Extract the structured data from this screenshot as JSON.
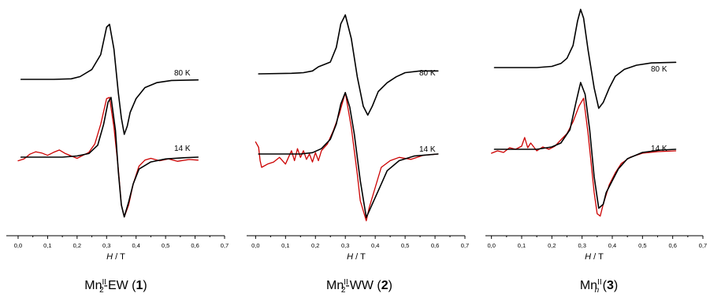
{
  "chart_data": [
    {
      "type": "line",
      "caption": {
        "base": "Mn",
        "sup": "II",
        "sub": "2",
        "suffix": "-EW (",
        "num": "1",
        "close": ")"
      },
      "xlabel": {
        "italic": "H",
        "rest": " / T"
      },
      "xlim": [
        -0.04,
        0.7
      ],
      "xticks": [
        "0,0",
        "0,1",
        "0,2",
        "0,3",
        "0,4",
        "0,5",
        "0,6",
        "0,7"
      ],
      "temperature_labels": [
        "80 K",
        "14 K"
      ],
      "series": [
        {
          "color": "#000000",
          "curve": "80K",
          "x": [
            0.01,
            0.12,
            0.18,
            0.21,
            0.25,
            0.28,
            0.3,
            0.31,
            0.325,
            0.34,
            0.35,
            0.36,
            0.37,
            0.38,
            0.4,
            0.43,
            0.47,
            0.52,
            0.61
          ],
          "y": [
            0.0,
            0.0,
            0.01,
            0.05,
            0.18,
            0.45,
            0.95,
            1.0,
            0.55,
            -0.25,
            -0.7,
            -1.0,
            -0.85,
            -0.6,
            -0.35,
            -0.15,
            -0.06,
            -0.02,
            -0.01
          ]
        },
        {
          "color": "#000000",
          "curve": "14K-fit",
          "x": [
            0.01,
            0.15,
            0.2,
            0.24,
            0.27,
            0.29,
            0.305,
            0.315,
            0.33,
            0.34,
            0.35,
            0.36,
            0.375,
            0.39,
            0.41,
            0.45,
            0.5,
            0.56,
            0.61
          ],
          "y": [
            0.0,
            0.0,
            0.02,
            0.06,
            0.2,
            0.55,
            0.92,
            1.0,
            0.45,
            -0.25,
            -0.8,
            -1.0,
            -0.75,
            -0.45,
            -0.2,
            -0.08,
            -0.03,
            -0.01,
            0.0
          ]
        },
        {
          "color": "#cc0000",
          "curve": "14K-exp",
          "x": [
            0.0,
            0.02,
            0.04,
            0.06,
            0.08,
            0.1,
            0.12,
            0.14,
            0.16,
            0.18,
            0.2,
            0.22,
            0.24,
            0.26,
            0.28,
            0.3,
            0.31,
            0.325,
            0.34,
            0.35,
            0.36,
            0.375,
            0.39,
            0.41,
            0.43,
            0.45,
            0.48,
            0.51,
            0.54,
            0.58,
            0.61
          ],
          "y": [
            -0.06,
            -0.03,
            0.05,
            0.09,
            0.07,
            0.03,
            0.08,
            0.12,
            0.06,
            0.02,
            -0.02,
            0.03,
            0.08,
            0.22,
            0.55,
            0.98,
            1.0,
            0.5,
            -0.2,
            -0.8,
            -1.0,
            -0.8,
            -0.45,
            -0.15,
            -0.05,
            -0.02,
            -0.06,
            -0.03,
            -0.07,
            -0.04,
            -0.05
          ]
        }
      ]
    },
    {
      "type": "line",
      "caption": {
        "base": "Mn",
        "sup": "II",
        "sub": "2",
        "suffix": "-WW (",
        "num": "2",
        "close": ")"
      },
      "xlabel": {
        "italic": "H",
        "rest": " / T"
      },
      "xlim": [
        -0.03,
        0.7
      ],
      "xticks": [
        "0,0",
        "0,1",
        "0,2",
        "0,3",
        "0,4",
        "0,5",
        "0,6",
        "0,7"
      ],
      "temperature_labels": [
        "80 K",
        "14 K"
      ],
      "series": [
        {
          "color": "#000000",
          "curve": "80K",
          "x": [
            0.01,
            0.12,
            0.16,
            0.19,
            0.21,
            0.23,
            0.25,
            0.27,
            0.285,
            0.3,
            0.32,
            0.34,
            0.36,
            0.375,
            0.39,
            0.41,
            0.44,
            0.47,
            0.5,
            0.55,
            0.61
          ],
          "y": [
            0.0,
            0.01,
            0.02,
            0.05,
            0.12,
            0.16,
            0.2,
            0.45,
            0.85,
            1.0,
            0.6,
            -0.05,
            -0.55,
            -0.7,
            -0.55,
            -0.3,
            -0.15,
            -0.05,
            0.02,
            0.05,
            0.05
          ]
        },
        {
          "color": "#000000",
          "curve": "14K-fit",
          "x": [
            0.01,
            0.15,
            0.19,
            0.22,
            0.25,
            0.27,
            0.285,
            0.3,
            0.315,
            0.33,
            0.35,
            0.37,
            0.38,
            0.4,
            0.42,
            0.44,
            0.48,
            0.53,
            0.61
          ],
          "y": [
            0.0,
            0.0,
            0.02,
            0.08,
            0.22,
            0.45,
            0.75,
            0.92,
            0.7,
            0.3,
            -0.4,
            -0.95,
            -0.85,
            -0.65,
            -0.45,
            -0.25,
            -0.1,
            -0.03,
            0.0
          ]
        },
        {
          "color": "#cc0000",
          "curve": "14K-exp",
          "x": [
            0.0,
            0.01,
            0.015,
            0.02,
            0.04,
            0.06,
            0.08,
            0.1,
            0.12,
            0.13,
            0.14,
            0.15,
            0.16,
            0.17,
            0.18,
            0.19,
            0.2,
            0.21,
            0.22,
            0.23,
            0.24,
            0.25,
            0.26,
            0.28,
            0.3,
            0.32,
            0.34,
            0.35,
            0.37,
            0.38,
            0.4,
            0.42,
            0.45,
            0.48,
            0.52,
            0.56,
            0.61
          ],
          "y": [
            0.18,
            0.1,
            -0.1,
            -0.2,
            -0.15,
            -0.12,
            -0.05,
            -0.15,
            0.05,
            -0.1,
            0.08,
            -0.05,
            0.05,
            -0.08,
            0.0,
            -0.12,
            0.02,
            -0.1,
            0.05,
            0.1,
            0.15,
            0.25,
            0.35,
            0.6,
            0.92,
            0.4,
            -0.3,
            -0.7,
            -1.0,
            -0.8,
            -0.5,
            -0.2,
            -0.1,
            -0.05,
            -0.08,
            -0.02,
            0.0
          ]
        }
      ]
    },
    {
      "type": "line",
      "caption": {
        "base": "Mn",
        "sup": "II",
        "sub": "n",
        "suffix": " (",
        "num": "3",
        "close": ")"
      },
      "xlabel": {
        "italic": "H",
        "rest": " / T"
      },
      "xlim": [
        -0.02,
        0.7
      ],
      "xticks": [
        "0,0",
        "0,1",
        "0,2",
        "0,3",
        "0,4",
        "0,5",
        "0,6",
        "0,7"
      ],
      "temperature_labels": [
        "80 K",
        "14 K"
      ],
      "series": [
        {
          "color": "#000000",
          "curve": "80K",
          "x": [
            0.01,
            0.15,
            0.2,
            0.23,
            0.25,
            0.27,
            0.285,
            0.295,
            0.305,
            0.32,
            0.34,
            0.355,
            0.37,
            0.39,
            0.41,
            0.44,
            0.48,
            0.53,
            0.61
          ],
          "y": [
            0.0,
            0.0,
            0.02,
            0.07,
            0.16,
            0.38,
            0.8,
            1.0,
            0.85,
            0.3,
            -0.35,
            -0.7,
            -0.6,
            -0.35,
            -0.15,
            -0.03,
            0.04,
            0.08,
            0.09
          ]
        },
        {
          "color": "#000000",
          "curve": "14K-fit",
          "x": [
            0.01,
            0.15,
            0.2,
            0.23,
            0.26,
            0.28,
            0.295,
            0.31,
            0.325,
            0.34,
            0.355,
            0.37,
            0.38,
            0.4,
            0.42,
            0.45,
            0.5,
            0.56,
            0.61
          ],
          "y": [
            0.0,
            0.0,
            0.03,
            0.08,
            0.25,
            0.6,
            0.85,
            0.7,
            0.25,
            -0.35,
            -0.75,
            -0.7,
            -0.55,
            -0.4,
            -0.25,
            -0.12,
            -0.04,
            -0.01,
            0.0
          ]
        },
        {
          "color": "#cc0000",
          "curve": "14K-exp",
          "x": [
            0.0,
            0.02,
            0.04,
            0.06,
            0.08,
            0.1,
            0.11,
            0.12,
            0.13,
            0.15,
            0.17,
            0.19,
            0.21,
            0.23,
            0.25,
            0.27,
            0.29,
            0.305,
            0.32,
            0.34,
            0.35,
            0.36,
            0.37,
            0.39,
            0.41,
            0.43,
            0.46,
            0.5,
            0.55,
            0.61
          ],
          "y": [
            -0.05,
            -0.02,
            -0.04,
            0.02,
            0.0,
            0.04,
            0.15,
            0.02,
            0.08,
            -0.02,
            0.03,
            0.0,
            0.04,
            0.12,
            0.2,
            0.35,
            0.55,
            0.65,
            0.2,
            -0.55,
            -0.82,
            -0.85,
            -0.7,
            -0.45,
            -0.3,
            -0.18,
            -0.1,
            -0.05,
            -0.03,
            -0.02
          ]
        }
      ]
    }
  ]
}
